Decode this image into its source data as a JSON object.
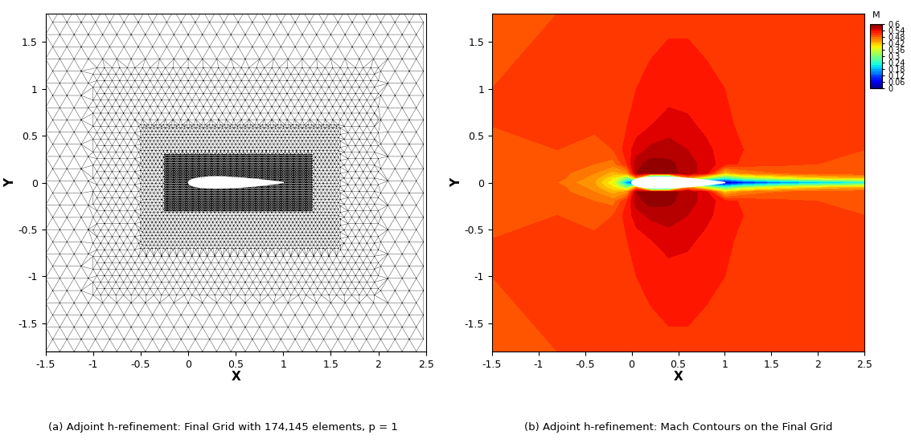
{
  "chart_data": [
    {
      "type": "mesh",
      "title": "(a) Adjoint h-refinement: Final Grid with 174,145 elements, p = 1",
      "xlabel": "X",
      "ylabel": "Y",
      "xlim": [
        -1.5,
        2.5
      ],
      "ylim": [
        -1.8,
        1.8
      ],
      "xticks": [
        -1.5,
        -1,
        -0.5,
        0,
        0.5,
        1,
        1.5,
        2,
        2.5
      ],
      "yticks": [
        -1.5,
        -1,
        -0.5,
        0,
        0.5,
        1,
        1.5
      ],
      "color": "#000000",
      "mesh_size": [
        {
          "x": [
            -1.5,
            2.5
          ],
          "y": [
            -1.8,
            1.8
          ],
          "h": 0.15
        },
        {
          "x": [
            -1.0,
            2.0
          ],
          "y": [
            -1.2,
            1.2
          ],
          "h": 0.08
        },
        {
          "x": [
            -0.5,
            1.6
          ],
          "y": [
            -0.7,
            0.6
          ],
          "h": 0.04
        },
        {
          "x": [
            -0.25,
            1.3
          ],
          "y": [
            -0.3,
            0.3
          ],
          "h": 0.015
        }
      ],
      "body": {
        "x": [
          0,
          0.0125,
          0.025,
          0.05,
          0.075,
          0.1,
          0.15,
          0.2,
          0.25,
          0.3,
          0.4,
          0.5,
          0.6,
          0.7,
          0.8,
          0.9,
          0.95,
          1.0
        ],
        "half_thickness": [
          0,
          0.01894,
          0.02615,
          0.03555,
          0.042,
          0.04683,
          0.05345,
          0.05737,
          0.05941,
          0.06002,
          0.05803,
          0.05294,
          0.04563,
          0.03664,
          0.02623,
          0.01448,
          0.00807,
          0.00126
        ]
      }
    },
    {
      "type": "contour",
      "title": "(b) Adjoint h-refinement: Mach Contours on the Final Grid",
      "xlabel": "X",
      "ylabel": "Y",
      "xlim": [
        -1.5,
        2.5
      ],
      "ylim": [
        -1.8,
        1.8
      ],
      "xticks": [
        -1.5,
        -1,
        -0.5,
        0,
        0.5,
        1,
        1.5,
        2,
        2.5
      ],
      "yticks": [
        -1.5,
        -1,
        -0.5,
        0,
        0.5,
        1,
        1.5
      ],
      "colorbar": {
        "label": "M",
        "lim": [
          0,
          0.6
        ],
        "ticks": [
          0.6,
          0.54,
          0.48,
          0.42,
          0.36,
          0.3,
          0.24,
          0.18,
          0.12,
          0.06,
          0
        ]
      },
      "field": {
        "x": [
          -1.5,
          -0.8,
          -0.4,
          -0.2,
          -0.05,
          0.05,
          0.2,
          0.4,
          0.6,
          0.8,
          1.0,
          1.2,
          1.6,
          2.0,
          2.5
        ],
        "y": [
          -1.8,
          -1.0,
          -0.6,
          -0.35,
          -0.2,
          -0.1,
          -0.05,
          0,
          0.05,
          0.1,
          0.2,
          0.35,
          0.6,
          1.0,
          1.8
        ],
        "values": [
          [
            0.5,
            0.5,
            0.505,
            0.51,
            0.51,
            0.51,
            0.512,
            0.515,
            0.515,
            0.512,
            0.51,
            0.51,
            0.51,
            0.51,
            0.51
          ],
          [
            0.5,
            0.505,
            0.51,
            0.51,
            0.515,
            0.52,
            0.525,
            0.53,
            0.53,
            0.525,
            0.52,
            0.515,
            0.51,
            0.505,
            0.5
          ],
          [
            0.5,
            0.505,
            0.505,
            0.51,
            0.52,
            0.53,
            0.54,
            0.55,
            0.545,
            0.535,
            0.525,
            0.515,
            0.51,
            0.505,
            0.5
          ],
          [
            0.5,
            0.5,
            0.49,
            0.5,
            0.53,
            0.55,
            0.565,
            0.57,
            0.56,
            0.545,
            0.53,
            0.52,
            0.51,
            0.505,
            0.5
          ],
          [
            0.5,
            0.495,
            0.48,
            0.47,
            0.52,
            0.57,
            0.59,
            0.585,
            0.57,
            0.55,
            0.53,
            0.515,
            0.505,
            0.5,
            0.5
          ],
          [
            0.5,
            0.49,
            0.46,
            0.43,
            0.45,
            0.58,
            0.6,
            0.59,
            0.57,
            0.55,
            0.42,
            0.46,
            0.48,
            0.49,
            0.495
          ],
          [
            0.5,
            0.49,
            0.45,
            0.4,
            0.3,
            0.45,
            0.0,
            0.0,
            0.45,
            0.35,
            0.25,
            0.32,
            0.38,
            0.41,
            0.43
          ],
          [
            0.5,
            0.48,
            0.44,
            0.38,
            0.15,
            0.0,
            0.0,
            0.0,
            0.0,
            0.0,
            0.02,
            0.08,
            0.14,
            0.18,
            0.22
          ],
          [
            0.5,
            0.49,
            0.45,
            0.4,
            0.3,
            0.45,
            0.0,
            0.0,
            0.45,
            0.35,
            0.25,
            0.32,
            0.38,
            0.41,
            0.43
          ],
          [
            0.5,
            0.49,
            0.46,
            0.43,
            0.45,
            0.58,
            0.6,
            0.59,
            0.57,
            0.55,
            0.42,
            0.46,
            0.48,
            0.49,
            0.495
          ],
          [
            0.5,
            0.495,
            0.48,
            0.47,
            0.52,
            0.57,
            0.59,
            0.585,
            0.57,
            0.55,
            0.53,
            0.515,
            0.505,
            0.5,
            0.5
          ],
          [
            0.5,
            0.5,
            0.49,
            0.5,
            0.53,
            0.55,
            0.565,
            0.57,
            0.56,
            0.545,
            0.53,
            0.52,
            0.51,
            0.505,
            0.5
          ],
          [
            0.5,
            0.505,
            0.505,
            0.51,
            0.52,
            0.53,
            0.54,
            0.55,
            0.545,
            0.535,
            0.525,
            0.515,
            0.51,
            0.505,
            0.5
          ],
          [
            0.5,
            0.505,
            0.51,
            0.51,
            0.515,
            0.52,
            0.525,
            0.53,
            0.53,
            0.525,
            0.52,
            0.515,
            0.51,
            0.505,
            0.5
          ],
          [
            0.5,
            0.5,
            0.505,
            0.51,
            0.51,
            0.51,
            0.512,
            0.515,
            0.515,
            0.512,
            0.51,
            0.51,
            0.51,
            0.51,
            0.51
          ]
        ]
      },
      "body": {
        "x": [
          0,
          0.0125,
          0.025,
          0.05,
          0.075,
          0.1,
          0.15,
          0.2,
          0.25,
          0.3,
          0.4,
          0.5,
          0.6,
          0.7,
          0.8,
          0.9,
          0.95,
          1.0
        ],
        "half_thickness": [
          0,
          0.01894,
          0.02615,
          0.03555,
          0.042,
          0.04683,
          0.05345,
          0.05737,
          0.05941,
          0.06002,
          0.05803,
          0.05294,
          0.04563,
          0.03664,
          0.02623,
          0.01448,
          0.00807,
          0.00126
        ]
      }
    }
  ]
}
